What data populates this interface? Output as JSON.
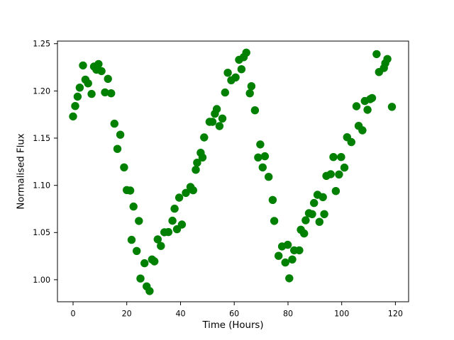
{
  "figure": {
    "background": "#ffffff",
    "title": ""
  },
  "chart_data": {
    "type": "scatter",
    "title": "",
    "xlabel": "Time (Hours)",
    "ylabel": "Normalised Flux",
    "grid": false,
    "legend": null,
    "xlim": [
      -5.8,
      124.9
    ],
    "ylim": [
      0.9767,
      1.2528
    ],
    "xticks": [
      0,
      20,
      40,
      60,
      80,
      100,
      120
    ],
    "xtick_labels": [
      "0",
      "20",
      "40",
      "60",
      "80",
      "100",
      "120"
    ],
    "yticks": [
      1.0,
      1.05,
      1.1,
      1.15,
      1.2,
      1.25
    ],
    "ytick_labels": [
      "1.00",
      "1.05",
      "1.10",
      "1.15",
      "1.20",
      "1.25"
    ],
    "axis_color": "#000000",
    "series": [
      {
        "name": "normalised flux light curve",
        "marker": "circle",
        "color": "#008000",
        "marker_radius_px": 5.7,
        "points": [
          [
            0.0,
            1.173
          ],
          [
            0.8,
            1.184
          ],
          [
            1.7,
            1.194
          ],
          [
            2.5,
            1.2035
          ],
          [
            3.7,
            1.227
          ],
          [
            4.6,
            1.212
          ],
          [
            5.6,
            1.208
          ],
          [
            6.9,
            1.1968
          ],
          [
            7.8,
            1.2258
          ],
          [
            8.7,
            1.2225
          ],
          [
            9.5,
            1.2285
          ],
          [
            10.6,
            1.221
          ],
          [
            11.9,
            1.1985
          ],
          [
            13.0,
            1.2128
          ],
          [
            14.2,
            1.1975
          ],
          [
            15.4,
            1.1653
          ],
          [
            16.5,
            1.1386
          ],
          [
            17.6,
            1.1536
          ],
          [
            19.0,
            1.119
          ],
          [
            20.0,
            1.095
          ],
          [
            21.3,
            1.0945
          ],
          [
            21.8,
            1.0423
          ],
          [
            22.5,
            1.0775
          ],
          [
            23.7,
            1.0305
          ],
          [
            24.5,
            1.0623
          ],
          [
            25.1,
            1.0013
          ],
          [
            26.6,
            1.0175
          ],
          [
            27.4,
            0.993
          ],
          [
            28.5,
            0.988
          ],
          [
            29.4,
            1.0215
          ],
          [
            30.3,
            1.0195
          ],
          [
            31.5,
            1.0428
          ],
          [
            32.7,
            1.0358
          ],
          [
            34.0,
            1.0503
          ],
          [
            35.5,
            1.0505
          ],
          [
            37.0,
            1.0625
          ],
          [
            37.8,
            1.0753
          ],
          [
            38.7,
            1.0535
          ],
          [
            39.5,
            1.087
          ],
          [
            40.5,
            1.0585
          ],
          [
            42.0,
            1.092
          ],
          [
            43.7,
            1.0983
          ],
          [
            44.7,
            1.0948
          ],
          [
            45.7,
            1.1165
          ],
          [
            46.2,
            1.124
          ],
          [
            47.5,
            1.1345
          ],
          [
            48.2,
            1.1295
          ],
          [
            48.8,
            1.1508
          ],
          [
            50.8,
            1.1673
          ],
          [
            51.9,
            1.1673
          ],
          [
            52.8,
            1.1758
          ],
          [
            53.5,
            1.1808
          ],
          [
            54.5,
            1.1628
          ],
          [
            55.6,
            1.1708
          ],
          [
            56.6,
            1.1983
          ],
          [
            57.6,
            1.2193
          ],
          [
            58.9,
            1.2113
          ],
          [
            60.5,
            1.2143
          ],
          [
            61.8,
            1.233
          ],
          [
            62.7,
            1.223
          ],
          [
            63.5,
            1.2358
          ],
          [
            64.5,
            1.2406
          ],
          [
            65.8,
            1.1975
          ],
          [
            66.4,
            1.205
          ],
          [
            67.7,
            1.1795
          ],
          [
            68.9,
            1.1295
          ],
          [
            69.7,
            1.1433
          ],
          [
            70.6,
            1.119
          ],
          [
            71.4,
            1.1308
          ],
          [
            72.8,
            1.109
          ],
          [
            74.3,
            1.0845
          ],
          [
            74.9,
            1.0623
          ],
          [
            76.5,
            1.0253
          ],
          [
            77.8,
            1.0353
          ],
          [
            79.0,
            1.0183
          ],
          [
            79.9,
            1.037
          ],
          [
            80.5,
            1.0015
          ],
          [
            81.6,
            1.0215
          ],
          [
            82.3,
            1.0312
          ],
          [
            84.2,
            1.0312
          ],
          [
            84.8,
            1.053
          ],
          [
            86.0,
            1.049
          ],
          [
            86.6,
            1.063
          ],
          [
            87.8,
            1.0705
          ],
          [
            89.0,
            1.0695
          ],
          [
            89.7,
            1.0813
          ],
          [
            91.0,
            1.09
          ],
          [
            91.7,
            1.0613
          ],
          [
            93.0,
            1.0875
          ],
          [
            93.5,
            1.0695
          ],
          [
            94.3,
            1.11
          ],
          [
            95.9,
            1.1118
          ],
          [
            96.9,
            1.13
          ],
          [
            97.8,
            1.094
          ],
          [
            99.0,
            1.1115
          ],
          [
            99.8,
            1.13
          ],
          [
            101.0,
            1.1188
          ],
          [
            102.0,
            1.151
          ],
          [
            103.6,
            1.1458
          ],
          [
            105.5,
            1.1838
          ],
          [
            106.3,
            1.163
          ],
          [
            107.7,
            1.1583
          ],
          [
            108.6,
            1.1893
          ],
          [
            109.6,
            1.18
          ],
          [
            110.6,
            1.1913
          ],
          [
            111.3,
            1.1925
          ],
          [
            113.0,
            1.239
          ],
          [
            113.9,
            1.22
          ],
          [
            115.7,
            1.2243
          ],
          [
            116.2,
            1.2293
          ],
          [
            117.0,
            1.2338
          ],
          [
            118.7,
            1.1832
          ]
        ]
      }
    ]
  }
}
